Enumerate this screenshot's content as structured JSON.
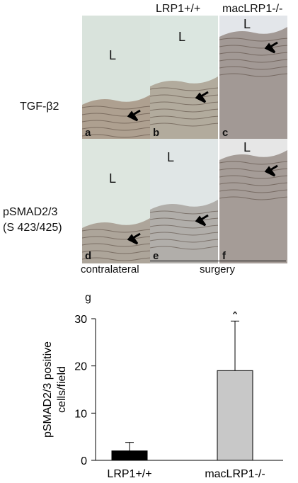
{
  "column_headers": {
    "wt": "LRP1+/+",
    "ko": "macLRP1-/-"
  },
  "row_labels": {
    "tgf": "TGF-β2",
    "psmad_line1": "pSMAD2/3",
    "psmad_line2": "(S 423/425)"
  },
  "panels": [
    {
      "letter": "a",
      "lumen": "L",
      "fill": "#d9e3dc",
      "tissue": "#8a6a52"
    },
    {
      "letter": "b",
      "lumen": "L",
      "fill": "#dbe6e0",
      "tissue": "#8f7a66"
    },
    {
      "letter": "c",
      "lumen": "L",
      "fill": "#e3e6ea",
      "tissue": "#6e5a4e"
    },
    {
      "letter": "d",
      "lumen": "L",
      "fill": "#dde6df",
      "tissue": "#857060"
    },
    {
      "letter": "e",
      "lumen": "L",
      "fill": "#e0e6e6",
      "tissue": "#8a7f78"
    },
    {
      "letter": "f",
      "lumen": "L",
      "fill": "#e6e6e6",
      "tissue": "#6f5f55"
    }
  ],
  "group_labels": {
    "contralateral": "contralateral",
    "surgery": "surgery"
  },
  "panel_g_letter": "g",
  "chart_data": {
    "type": "bar",
    "categories": [
      "LRP1+/+",
      "macLRP1-/-"
    ],
    "values": [
      2,
      19
    ],
    "errors": [
      1.8,
      10.5
    ],
    "colors": [
      "#000000",
      "#c8c8c8"
    ],
    "ylabel_line1": "pSMAD2/3 positive",
    "ylabel_line2": "cells/field",
    "ylim": [
      0,
      30
    ],
    "yticks": [
      "0",
      "10",
      "20",
      "30"
    ],
    "significance": "*"
  }
}
